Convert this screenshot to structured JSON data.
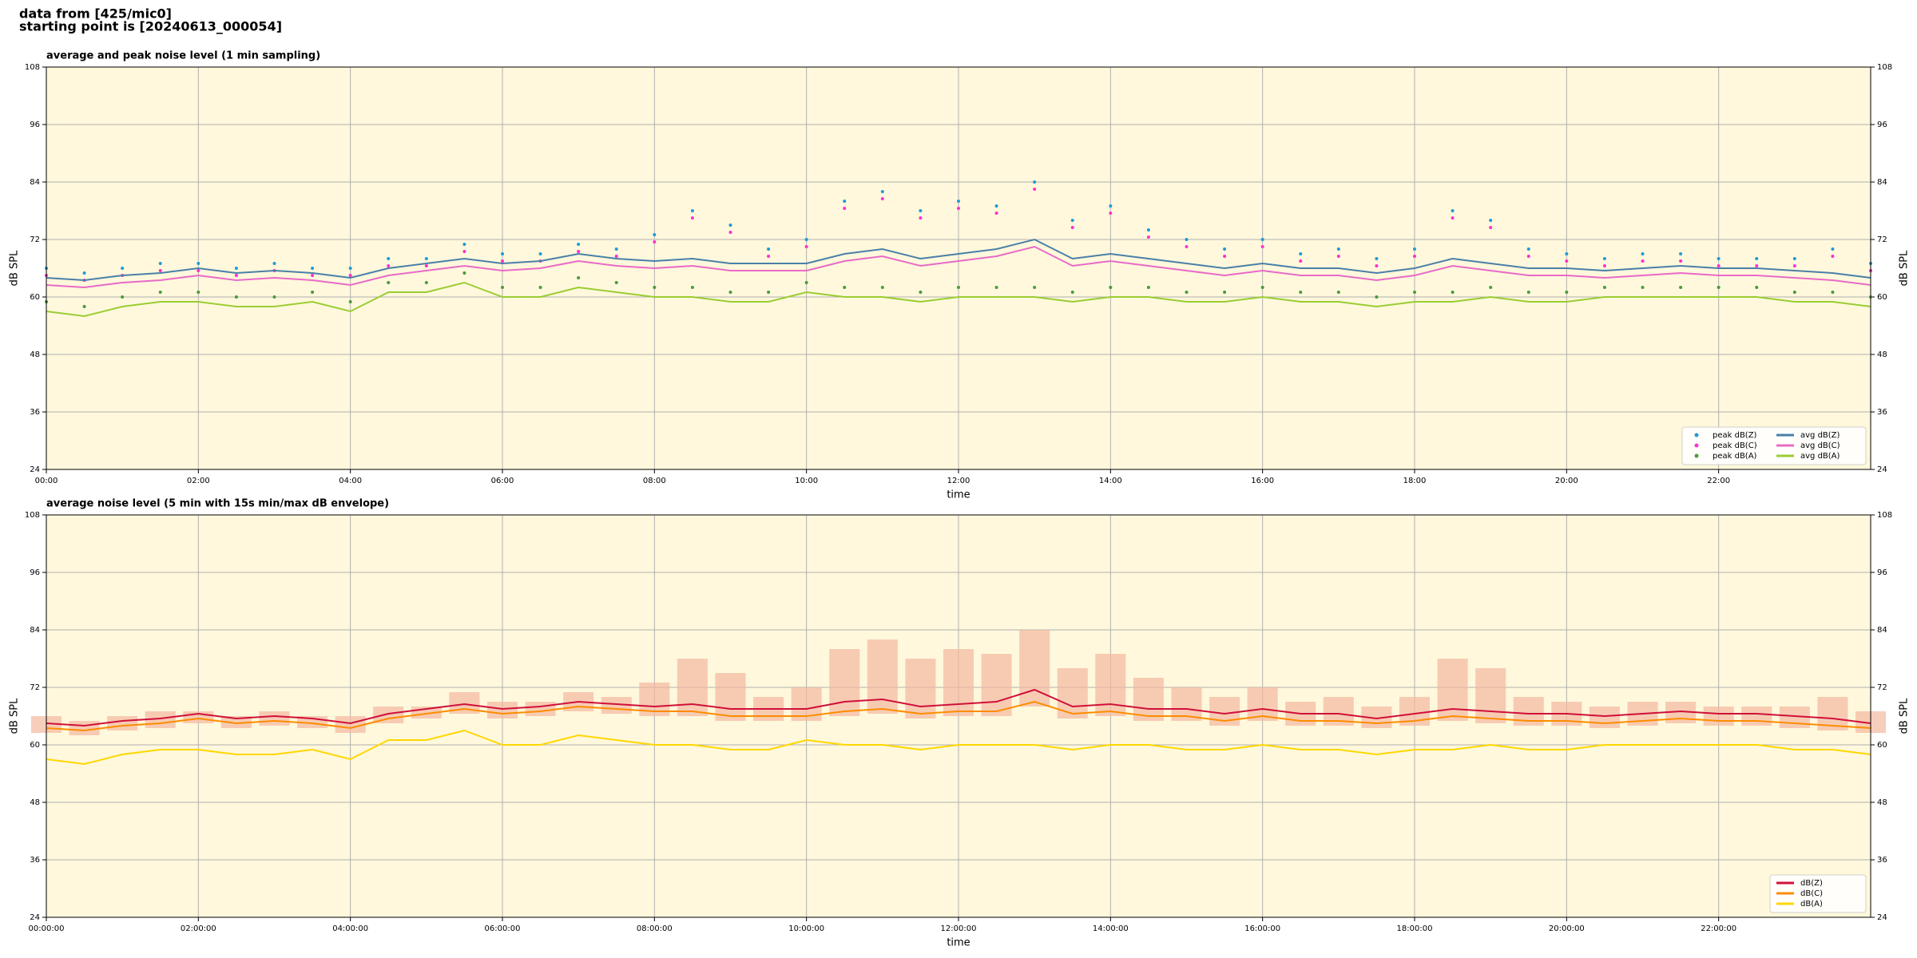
{
  "header": {
    "line1": "data from [425/mic0]",
    "line2": "starting point is [20240613_000054]"
  },
  "chart_data": [
    {
      "type": "line",
      "title": "average and peak noise level (1 min sampling)",
      "xlabel": "time",
      "ylabel": "dB SPL",
      "xlim": [
        0,
        24
      ],
      "ylim": [
        24,
        108
      ],
      "yticks": [
        24,
        36,
        48,
        60,
        72,
        84,
        96,
        108
      ],
      "grid": true,
      "legend": "lower right",
      "background": "#fff8dc",
      "xticks": [
        {
          "value": 0,
          "label": "00:00"
        },
        {
          "value": 2,
          "label": "02:00"
        },
        {
          "value": 4,
          "label": "04:00"
        },
        {
          "value": 6,
          "label": "06:00"
        },
        {
          "value": 8,
          "label": "08:00"
        },
        {
          "value": 10,
          "label": "10:00"
        },
        {
          "value": 12,
          "label": "12:00"
        },
        {
          "value": 14,
          "label": "14:00"
        },
        {
          "value": 16,
          "label": "16:00"
        },
        {
          "value": 18,
          "label": "18:00"
        },
        {
          "value": 20,
          "label": "20:00"
        },
        {
          "value": 22,
          "label": "22:00"
        }
      ],
      "x": [
        0,
        0.5,
        1,
        1.5,
        2,
        2.5,
        3,
        3.5,
        4,
        4.5,
        5,
        5.5,
        6,
        6.5,
        7,
        7.5,
        8,
        8.5,
        9,
        9.5,
        10,
        10.5,
        11,
        11.5,
        12,
        12.5,
        13,
        13.5,
        14,
        14.5,
        15,
        15.5,
        16,
        16.5,
        17,
        17.5,
        18,
        18.5,
        19,
        19.5,
        20,
        20.5,
        21,
        21.5,
        22,
        22.5,
        23,
        23.5,
        24
      ],
      "series": [
        {
          "name": "peak dB(Z)",
          "color": "#1f9bd6",
          "mode": "markers",
          "values": [
            66,
            65,
            66,
            67,
            67,
            66,
            67,
            66,
            66,
            68,
            68,
            71,
            69,
            69,
            71,
            70,
            73,
            78,
            75,
            70,
            72,
            80,
            82,
            78,
            80,
            79,
            84,
            76,
            79,
            74,
            72,
            70,
            72,
            69,
            70,
            68,
            70,
            78,
            76,
            70,
            69,
            68,
            69,
            69,
            68,
            68,
            68,
            70,
            67
          ]
        },
        {
          "name": "peak dB(C)",
          "color": "#ff2fd0",
          "mode": "markers",
          "values": [
            64.5,
            63.5,
            64.5,
            65.5,
            65.5,
            64.5,
            65.5,
            64.5,
            64.5,
            66.5,
            66.5,
            69.5,
            67.5,
            67.5,
            69.5,
            68.5,
            71.5,
            76.5,
            73.5,
            68.5,
            70.5,
            78.5,
            80.5,
            76.5,
            78.5,
            77.5,
            82.5,
            74.5,
            77.5,
            72.5,
            70.5,
            68.5,
            70.5,
            67.5,
            68.5,
            66.5,
            68.5,
            76.5,
            74.5,
            68.5,
            67.5,
            66.5,
            67.5,
            67.5,
            66.5,
            66.5,
            66.5,
            68.5,
            65.5
          ]
        },
        {
          "name": "peak dB(A)",
          "color": "#4a9a3a",
          "mode": "markers",
          "values": [
            59,
            58,
            60,
            61,
            61,
            60,
            60,
            61,
            59,
            63,
            63,
            65,
            62,
            62,
            64,
            63,
            62,
            62,
            61,
            61,
            63,
            62,
            62,
            61,
            62,
            62,
            62,
            61,
            62,
            62,
            61,
            61,
            62,
            61,
            61,
            60,
            61,
            61,
            62,
            61,
            61,
            62,
            62,
            62,
            62,
            62,
            61,
            61,
            60
          ]
        },
        {
          "name": "avg dB(Z)",
          "color": "#4a7fa8",
          "mode": "lines",
          "values": [
            64,
            63.5,
            64.5,
            65,
            66,
            65,
            65.5,
            65,
            64,
            66,
            67,
            68,
            67,
            67.5,
            69,
            68,
            67.5,
            68,
            67,
            67,
            67,
            69,
            70,
            68,
            69,
            70,
            72,
            68,
            69,
            68,
            67,
            66,
            67,
            66,
            66,
            65,
            66,
            68,
            67,
            66,
            66,
            65.5,
            66,
            66.5,
            66,
            66,
            65.5,
            65,
            64
          ]
        },
        {
          "name": "avg dB(C)",
          "color": "#e86ac8",
          "mode": "lines",
          "values": [
            62.5,
            62,
            63,
            63.5,
            64.5,
            63.5,
            64,
            63.5,
            62.5,
            64.5,
            65.5,
            66.5,
            65.5,
            66,
            67.5,
            66.5,
            66,
            66.5,
            65.5,
            65.5,
            65.5,
            67.5,
            68.5,
            66.5,
            67.5,
            68.5,
            70.5,
            66.5,
            67.5,
            66.5,
            65.5,
            64.5,
            65.5,
            64.5,
            64.5,
            63.5,
            64.5,
            66.5,
            65.5,
            64.5,
            64.5,
            64,
            64.5,
            65,
            64.5,
            64.5,
            64,
            63.5,
            62.5
          ]
        },
        {
          "name": "avg dB(A)",
          "color": "#9acd32",
          "mode": "lines",
          "values": [
            57,
            56,
            58,
            59,
            59,
            58,
            58,
            59,
            57,
            61,
            61,
            63,
            60,
            60,
            62,
            61,
            60,
            60,
            59,
            59,
            61,
            60,
            60,
            59,
            60,
            60,
            60,
            59,
            60,
            60,
            59,
            59,
            60,
            59,
            59,
            58,
            59,
            59,
            60,
            59,
            59,
            60,
            60,
            60,
            60,
            60,
            59,
            59,
            58
          ]
        }
      ]
    },
    {
      "type": "line",
      "title": "average noise level (5 min with 15s min/max dB envelope)",
      "xlabel": "time",
      "ylabel": "dB SPL",
      "xlim": [
        0,
        24
      ],
      "ylim": [
        24,
        108
      ],
      "yticks": [
        24,
        36,
        48,
        60,
        72,
        84,
        96,
        108
      ],
      "grid": true,
      "legend": "lower right",
      "background": "#fff8dc",
      "xticks": [
        {
          "value": 0,
          "label": "00:00:00"
        },
        {
          "value": 2,
          "label": "02:00:00"
        },
        {
          "value": 4,
          "label": "04:00:00"
        },
        {
          "value": 6,
          "label": "06:00:00"
        },
        {
          "value": 8,
          "label": "08:00:00"
        },
        {
          "value": 10,
          "label": "10:00:00"
        },
        {
          "value": 12,
          "label": "12:00:00"
        },
        {
          "value": 14,
          "label": "14:00:00"
        },
        {
          "value": 16,
          "label": "16:00:00"
        },
        {
          "value": 18,
          "label": "18:00:00"
        },
        {
          "value": 20,
          "label": "20:00:00"
        },
        {
          "value": 22,
          "label": "22:00:00"
        }
      ],
      "x": [
        0,
        0.5,
        1,
        1.5,
        2,
        2.5,
        3,
        3.5,
        4,
        4.5,
        5,
        5.5,
        6,
        6.5,
        7,
        7.5,
        8,
        8.5,
        9,
        9.5,
        10,
        10.5,
        11,
        11.5,
        12,
        12.5,
        13,
        13.5,
        14,
        14.5,
        15,
        15.5,
        16,
        16.5,
        17,
        17.5,
        18,
        18.5,
        19,
        19.5,
        20,
        20.5,
        21,
        21.5,
        22,
        22.5,
        23,
        23.5,
        24
      ],
      "envelope": {
        "color": "#f4b8a0",
        "high": [
          66,
          65,
          66,
          67,
          67,
          66,
          67,
          66,
          66,
          68,
          68,
          71,
          69,
          69,
          71,
          70,
          73,
          78,
          75,
          70,
          72,
          80,
          82,
          78,
          80,
          79,
          84,
          76,
          79,
          74,
          72,
          70,
          72,
          69,
          70,
          68,
          70,
          78,
          76,
          70,
          69,
          68,
          69,
          69,
          68,
          68,
          68,
          70,
          67
        ],
        "low": [
          62.5,
          62,
          63,
          63.5,
          64.5,
          63.5,
          64,
          63.5,
          62.5,
          64.5,
          65.5,
          66.5,
          65.5,
          66,
          67,
          66.5,
          66,
          66,
          65,
          65,
          65,
          66,
          66.5,
          65.5,
          66,
          66,
          68,
          65.5,
          66,
          65,
          65,
          64,
          65,
          64,
          64,
          63.5,
          64,
          65,
          64.5,
          64,
          64,
          63.5,
          64,
          64.5,
          64,
          64,
          63.5,
          63,
          62.5
        ]
      },
      "series": [
        {
          "name": "dB(Z)",
          "color": "#d0103a",
          "mode": "lines",
          "values": [
            64.5,
            64,
            65,
            65.5,
            66.5,
            65.5,
            66,
            65.5,
            64.5,
            66.5,
            67.5,
            68.5,
            67.5,
            68,
            69,
            68.5,
            68,
            68.5,
            67.5,
            67.5,
            67.5,
            69,
            69.5,
            68,
            68.5,
            69,
            71.5,
            68,
            68.5,
            67.5,
            67.5,
            66.5,
            67.5,
            66.5,
            66.5,
            65.5,
            66.5,
            67.5,
            67,
            66.5,
            66.5,
            66,
            66.5,
            67,
            66.5,
            66.5,
            66,
            65.5,
            64.5
          ]
        },
        {
          "name": "dB(C)",
          "color": "#ff8c00",
          "mode": "lines",
          "values": [
            63.5,
            63,
            64,
            64.5,
            65.5,
            64.5,
            65,
            64.5,
            63.5,
            65.5,
            66.5,
            67.5,
            66.5,
            67,
            68,
            67.5,
            67,
            67,
            66,
            66,
            66,
            67,
            67.5,
            66.5,
            67,
            67,
            69,
            66.5,
            67,
            66,
            66,
            65,
            66,
            65,
            65,
            64.5,
            65,
            66,
            65.5,
            65,
            65,
            64.5,
            65,
            65.5,
            65,
            65,
            64.5,
            64,
            63.5
          ]
        },
        {
          "name": "dB(A)",
          "color": "#ffd700",
          "mode": "lines",
          "values": [
            57,
            56,
            58,
            59,
            59,
            58,
            58,
            59,
            57,
            61,
            61,
            63,
            60,
            60,
            62,
            61,
            60,
            60,
            59,
            59,
            61,
            60,
            60,
            59,
            60,
            60,
            60,
            59,
            60,
            60,
            59,
            59,
            60,
            59,
            59,
            58,
            59,
            59,
            60,
            59,
            59,
            60,
            60,
            60,
            60,
            60,
            59,
            59,
            58
          ]
        }
      ]
    }
  ]
}
